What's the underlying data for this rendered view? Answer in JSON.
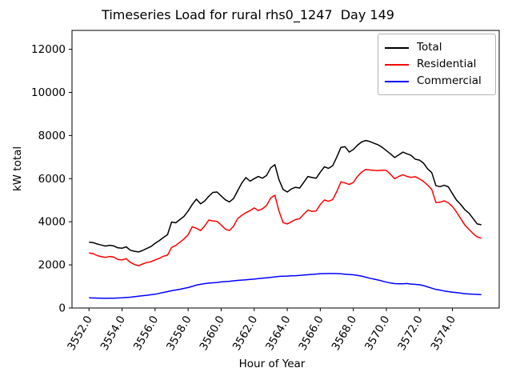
{
  "figure": {
    "title": "Timeseries Load for rural rhs0_1247  Day 149",
    "xlabel": "Hour of Year",
    "ylabel": "kW total"
  },
  "legend": {
    "position": "upper right",
    "items": [
      {
        "label": "Total",
        "color": "#000000"
      },
      {
        "label": "Residential",
        "color": "#ff0000"
      },
      {
        "label": "Commercial",
        "color": "#0000ff"
      }
    ]
  },
  "axes": {
    "xlim": [
      3550.97,
      3576.83
    ],
    "ylim": [
      0,
      12875
    ],
    "xticks": [
      3552,
      3554,
      3556,
      3558,
      3560,
      3562,
      3564,
      3566,
      3568,
      3570,
      3572,
      3574
    ],
    "xtick_labels": [
      "3552.0",
      "3554.0",
      "3556.0",
      "3558.0",
      "3560.0",
      "3562.0",
      "3564.0",
      "3566.0",
      "3568.0",
      "3570.0",
      "3572.0",
      "3574.0"
    ],
    "yticks": [
      0,
      2000,
      4000,
      6000,
      8000,
      10000,
      12000
    ],
    "ytick_labels": [
      "0",
      "2000",
      "4000",
      "6000",
      "8000",
      "10000",
      "12000"
    ],
    "grid": false
  },
  "chart_data": {
    "type": "line",
    "title": "Timeseries Load for rural rhs0_1247  Day 149",
    "xlabel": "Hour of Year",
    "ylabel": "kW total",
    "xlim": [
      3550.97,
      3576.83
    ],
    "ylim": [
      0,
      12875
    ],
    "grid": false,
    "legend_position": "upper right",
    "x": [
      3552.0,
      3552.25,
      3552.5,
      3552.75,
      3553.0,
      3553.25,
      3553.5,
      3553.75,
      3554.0,
      3554.25,
      3554.5,
      3554.75,
      3555.0,
      3555.25,
      3555.5,
      3555.75,
      3556.0,
      3556.25,
      3556.5,
      3556.75,
      3557.0,
      3557.25,
      3557.5,
      3557.75,
      3558.0,
      3558.25,
      3558.5,
      3558.75,
      3559.0,
      3559.25,
      3559.5,
      3559.75,
      3560.0,
      3560.25,
      3560.5,
      3560.75,
      3561.0,
      3561.25,
      3561.5,
      3561.75,
      3562.0,
      3562.25,
      3562.5,
      3562.75,
      3563.0,
      3563.25,
      3563.5,
      3563.75,
      3564.0,
      3564.25,
      3564.5,
      3564.75,
      3565.0,
      3565.25,
      3565.5,
      3565.75,
      3566.0,
      3566.25,
      3566.5,
      3566.75,
      3567.0,
      3567.25,
      3567.5,
      3567.75,
      3568.0,
      3568.25,
      3568.5,
      3568.75,
      3569.0,
      3569.25,
      3569.5,
      3569.75,
      3570.0,
      3570.25,
      3570.5,
      3570.75,
      3571.0,
      3571.25,
      3571.5,
      3571.75,
      3572.0,
      3572.25,
      3572.5,
      3572.75,
      3573.0,
      3573.25,
      3573.5,
      3573.75,
      3574.0,
      3574.25,
      3574.5,
      3574.75,
      3575.0,
      3575.25,
      3575.5,
      3575.75
    ],
    "series": [
      {
        "name": "Total",
        "color": "#000000",
        "values": [
          3050,
          3030,
          2970,
          2920,
          2870,
          2910,
          2880,
          2790,
          2770,
          2840,
          2680,
          2630,
          2600,
          2670,
          2760,
          2850,
          3000,
          3120,
          3270,
          3400,
          3990,
          3950,
          4100,
          4250,
          4500,
          4800,
          5050,
          4830,
          4960,
          5180,
          5360,
          5380,
          5200,
          5020,
          4920,
          5080,
          5440,
          5800,
          6050,
          5880,
          6000,
          6100,
          6020,
          6150,
          6500,
          6650,
          5950,
          5500,
          5380,
          5520,
          5600,
          5560,
          5830,
          6100,
          6050,
          6020,
          6300,
          6550,
          6480,
          6600,
          7000,
          7450,
          7480,
          7230,
          7350,
          7550,
          7700,
          7770,
          7720,
          7640,
          7570,
          7450,
          7300,
          7150,
          6980,
          7100,
          7230,
          7150,
          7080,
          6900,
          6860,
          6720,
          6450,
          6280,
          5670,
          5630,
          5690,
          5620,
          5300,
          5000,
          4800,
          4560,
          4400,
          4150,
          3900,
          3860
        ]
      },
      {
        "name": "Residential",
        "color": "#ff0000",
        "values": [
          2550,
          2520,
          2430,
          2380,
          2350,
          2390,
          2360,
          2250,
          2230,
          2290,
          2120,
          2020,
          1960,
          2040,
          2110,
          2150,
          2230,
          2300,
          2400,
          2450,
          2810,
          2900,
          3050,
          3200,
          3400,
          3770,
          3700,
          3590,
          3800,
          4080,
          4040,
          4020,
          3850,
          3660,
          3590,
          3800,
          4150,
          4300,
          4420,
          4520,
          4640,
          4520,
          4600,
          4760,
          5100,
          5230,
          4500,
          3960,
          3900,
          4000,
          4100,
          4140,
          4350,
          4540,
          4480,
          4500,
          4800,
          5010,
          4950,
          5030,
          5400,
          5850,
          5800,
          5730,
          5820,
          6100,
          6300,
          6430,
          6400,
          6380,
          6370,
          6390,
          6380,
          6200,
          6000,
          6100,
          6180,
          6100,
          6060,
          6090,
          5990,
          5870,
          5700,
          5500,
          4890,
          4910,
          4970,
          4880,
          4700,
          4450,
          4150,
          3850,
          3650,
          3450,
          3300,
          3240
        ]
      },
      {
        "name": "Commercial",
        "color": "#0000ff",
        "values": [
          470,
          465,
          460,
          455,
          450,
          452,
          455,
          462,
          470,
          485,
          500,
          525,
          550,
          570,
          590,
          615,
          640,
          680,
          720,
          760,
          800,
          835,
          870,
          910,
          950,
          1000,
          1060,
          1100,
          1130,
          1155,
          1170,
          1185,
          1210,
          1225,
          1240,
          1260,
          1280,
          1295,
          1310,
          1325,
          1340,
          1360,
          1380,
          1400,
          1420,
          1445,
          1465,
          1475,
          1480,
          1490,
          1500,
          1515,
          1530,
          1545,
          1560,
          1575,
          1590,
          1595,
          1600,
          1600,
          1595,
          1585,
          1570,
          1555,
          1540,
          1510,
          1480,
          1430,
          1380,
          1340,
          1300,
          1250,
          1200,
          1160,
          1130,
          1125,
          1120,
          1135,
          1110,
          1095,
          1080,
          1040,
          980,
          920,
          860,
          830,
          790,
          760,
          730,
          715,
          690,
          665,
          650,
          640,
          630,
          625
        ]
      }
    ]
  }
}
